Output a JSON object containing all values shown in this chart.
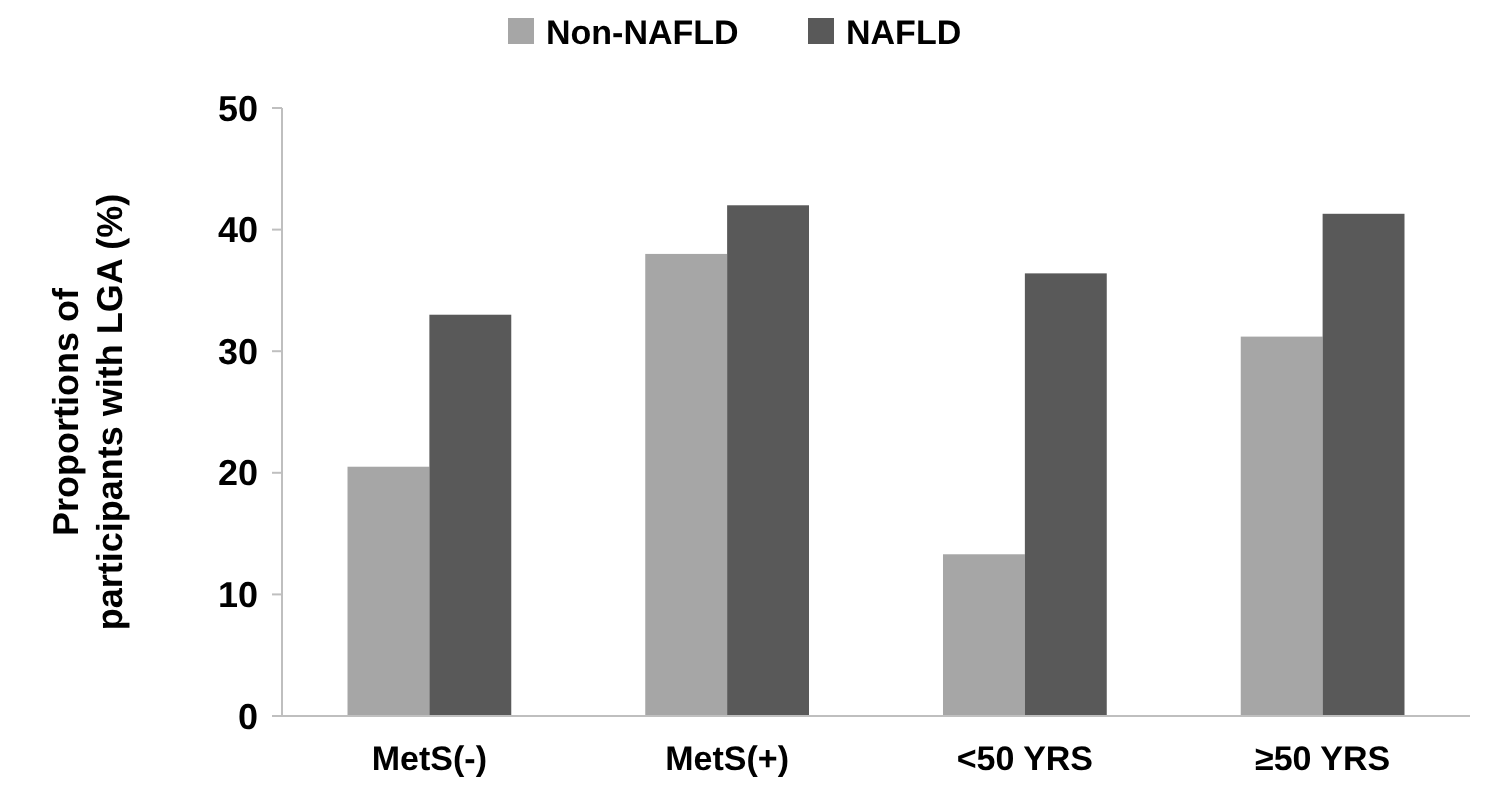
{
  "chart_data": {
    "type": "bar",
    "ylabel": "Proportions of\nparticipants with LGA (%)",
    "categories": [
      "MetS(-)",
      "MetS(+)",
      "<50 YRS",
      "≥50 YRS"
    ],
    "series": [
      {
        "name": "Non-NAFLD",
        "color": "#a6a6a6",
        "values": [
          20.5,
          38,
          13.3,
          31.2
        ]
      },
      {
        "name": "NAFLD",
        "color": "#595959",
        "values": [
          33,
          42,
          36.4,
          41.3
        ]
      }
    ],
    "ylim": [
      0,
      50
    ],
    "yticks": [
      0,
      10,
      20,
      30,
      40,
      50
    ],
    "grid": false,
    "legend": "top"
  }
}
